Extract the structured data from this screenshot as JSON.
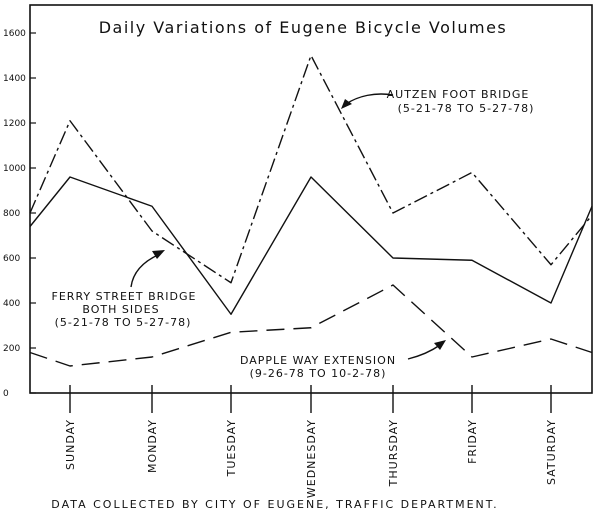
{
  "chart_data": {
    "type": "line",
    "title": "Daily Variations of Eugene Bicycle Volumes",
    "categories": [
      "SUNDAY",
      "MONDAY",
      "TUESDAY",
      "WEDNESDAY",
      "THURSDAY",
      "FRIDAY",
      "SATURDAY"
    ],
    "ylim": [
      0,
      1600
    ],
    "yticks": [
      0,
      200,
      400,
      600,
      800,
      1000,
      1200,
      1400,
      1600
    ],
    "ytick_labels": [
      "0",
      "200",
      "400",
      "600",
      "800",
      "1000",
      "1200",
      "1400",
      "1600"
    ],
    "grid": false,
    "series": [
      {
        "name": "AUTZEN FOOT BRIDGE",
        "dates": "(5-21-78 TO 5-27-78)",
        "values": [
          1210,
          720,
          490,
          1500,
          800,
          980,
          570
        ],
        "start_value": 800,
        "end_value": 790
      },
      {
        "name": "FERRY STREET BRIDGE",
        "subtitle": "BOTH SIDES",
        "dates": "(5-21-78 TO 5-27-78)",
        "values": [
          960,
          830,
          350,
          960,
          600,
          590,
          400
        ],
        "start_value": 740,
        "end_value": 830
      },
      {
        "name": "DAPPLE WAY EXTENSION",
        "dates": "(9-26-78 TO 10-2-78)",
        "values": [
          120,
          160,
          270,
          290,
          480,
          160,
          240
        ],
        "start_value": 180,
        "end_value": 180
      }
    ]
  },
  "footer": "DATA COLLECTED BY CITY OF EUGENE, TRAFFIC DEPARTMENT."
}
